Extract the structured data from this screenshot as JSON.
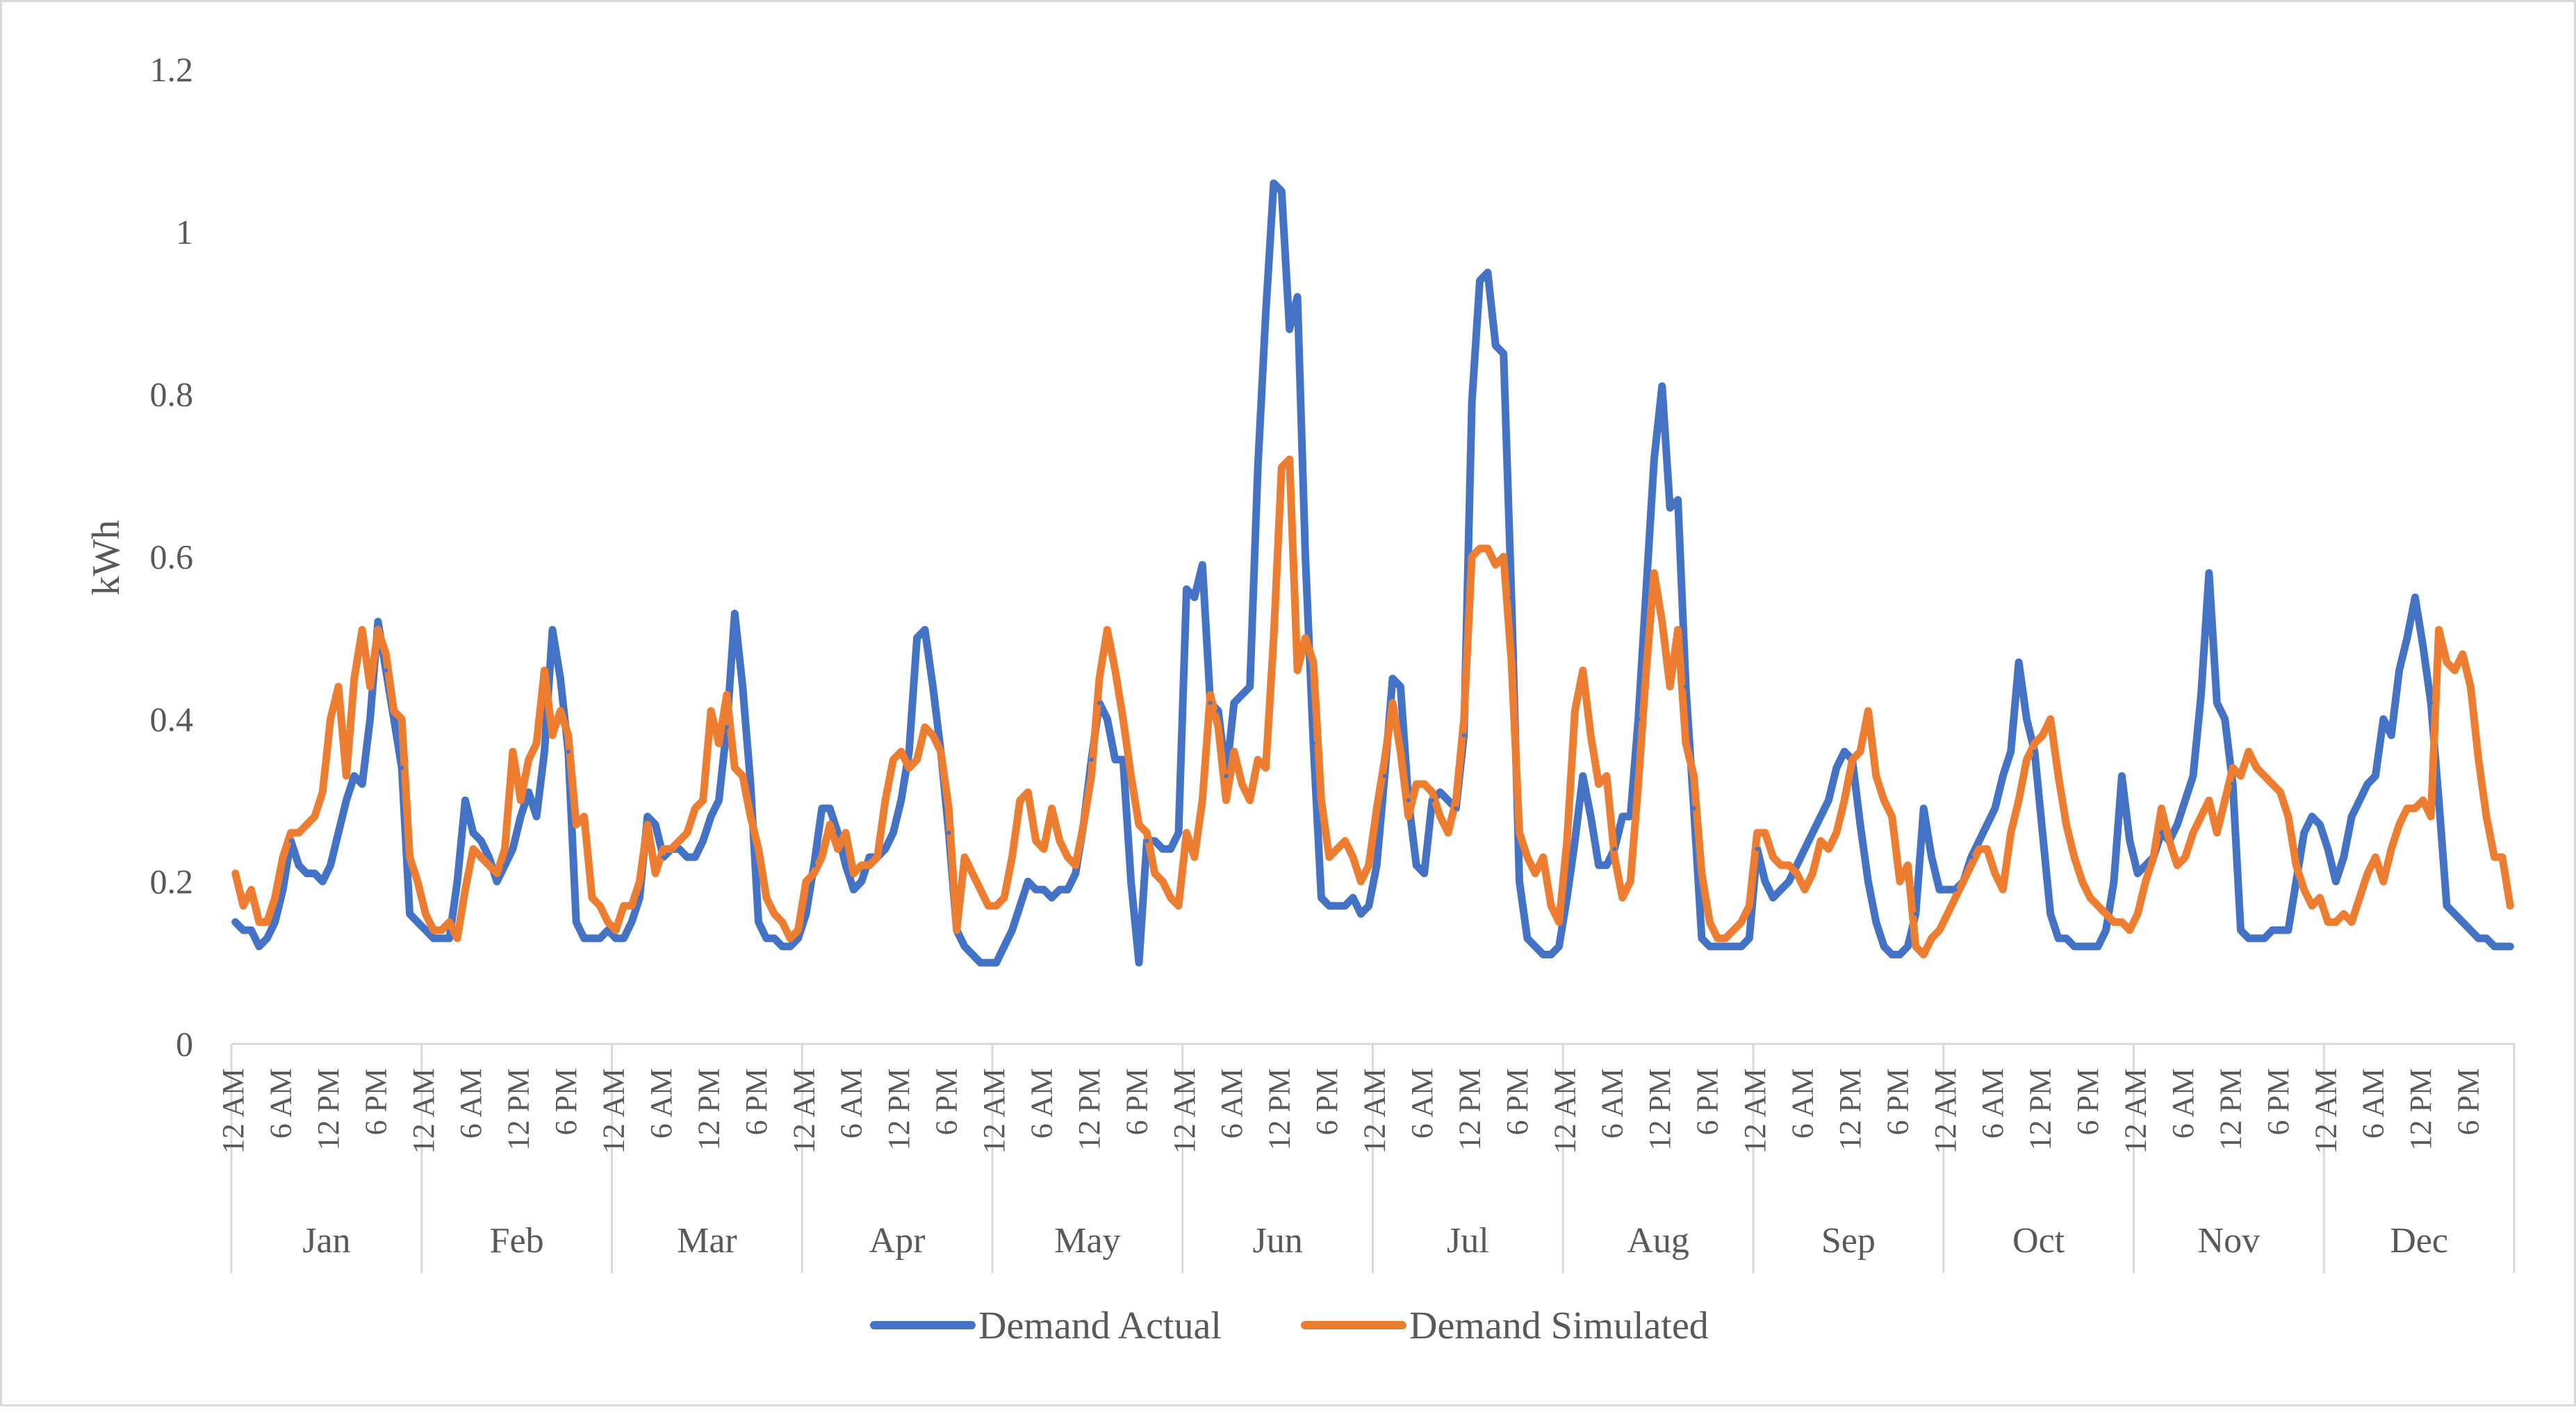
{
  "chart_data": {
    "type": "line",
    "title": "",
    "xlabel": "",
    "ylabel": "kWh",
    "ylim": [
      0,
      1.2
    ],
    "yticks": [
      "0",
      "0.2",
      "0.4",
      "0.6",
      "0.8",
      "1",
      "1.2"
    ],
    "hour_ticks": [
      "12 AM",
      "6 AM",
      "12 PM",
      "6 PM"
    ],
    "months": [
      "Jan",
      "Feb",
      "Mar",
      "Apr",
      "May",
      "Jun",
      "Jul",
      "Aug",
      "Sep",
      "Oct",
      "Nov",
      "Dec"
    ],
    "hours_per_month": 24,
    "legend_position": "bottom",
    "series": [
      {
        "name": "Demand Actual",
        "color": "#4472c4",
        "values": [
          [
            0.15,
            0.14,
            0.14,
            0.12,
            0.13,
            0.15,
            0.19,
            0.25,
            0.22,
            0.21,
            0.21,
            0.2,
            0.22,
            0.26,
            0.3,
            0.33,
            0.32,
            0.4,
            0.52,
            0.46,
            0.4,
            0.34,
            0.16,
            0.15
          ],
          [
            0.14,
            0.13,
            0.13,
            0.13,
            0.2,
            0.3,
            0.26,
            0.25,
            0.23,
            0.2,
            0.22,
            0.24,
            0.28,
            0.31,
            0.28,
            0.36,
            0.51,
            0.45,
            0.36,
            0.15,
            0.13,
            0.13,
            0.13,
            0.14
          ],
          [
            0.13,
            0.13,
            0.15,
            0.18,
            0.28,
            0.27,
            0.23,
            0.24,
            0.24,
            0.23,
            0.23,
            0.25,
            0.28,
            0.3,
            0.39,
            0.53,
            0.44,
            0.32,
            0.15,
            0.13,
            0.13,
            0.12,
            0.12,
            0.13
          ],
          [
            0.16,
            0.22,
            0.29,
            0.29,
            0.26,
            0.22,
            0.19,
            0.2,
            0.23,
            0.23,
            0.24,
            0.26,
            0.3,
            0.36,
            0.5,
            0.51,
            0.44,
            0.36,
            0.26,
            0.14,
            0.12,
            0.11,
            0.1,
            0.1
          ],
          [
            0.1,
            0.12,
            0.14,
            0.17,
            0.2,
            0.19,
            0.19,
            0.18,
            0.19,
            0.19,
            0.21,
            0.27,
            0.35,
            0.42,
            0.4,
            0.35,
            0.35,
            0.2,
            0.1,
            0.25,
            0.25,
            0.24,
            0.24,
            0.26
          ],
          [
            0.56,
            0.55,
            0.59,
            0.42,
            0.41,
            0.33,
            0.42,
            0.43,
            0.44,
            0.71,
            0.9,
            1.06,
            1.05,
            0.88,
            0.92,
            0.6,
            0.37,
            0.18,
            0.17,
            0.17,
            0.17,
            0.18,
            0.16,
            0.17
          ],
          [
            0.22,
            0.33,
            0.45,
            0.44,
            0.3,
            0.22,
            0.21,
            0.3,
            0.31,
            0.3,
            0.29,
            0.38,
            0.79,
            0.94,
            0.95,
            0.86,
            0.85,
            0.55,
            0.2,
            0.13,
            0.12,
            0.11,
            0.11,
            0.12
          ],
          [
            0.18,
            0.25,
            0.33,
            0.28,
            0.22,
            0.22,
            0.24,
            0.28,
            0.28,
            0.4,
            0.56,
            0.72,
            0.81,
            0.66,
            0.67,
            0.44,
            0.29,
            0.13,
            0.12,
            0.12,
            0.12,
            0.12,
            0.12,
            0.13
          ],
          [
            0.24,
            0.2,
            0.18,
            0.19,
            0.2,
            0.22,
            0.24,
            0.26,
            0.28,
            0.3,
            0.34,
            0.36,
            0.35,
            0.27,
            0.2,
            0.15,
            0.12,
            0.11,
            0.11,
            0.12,
            0.16,
            0.29,
            0.23,
            0.19
          ],
          [
            0.19,
            0.19,
            0.2,
            0.23,
            0.25,
            0.27,
            0.29,
            0.33,
            0.36,
            0.47,
            0.4,
            0.36,
            0.26,
            0.16,
            0.13,
            0.13,
            0.12,
            0.12,
            0.12,
            0.12,
            0.14,
            0.2,
            0.33,
            0.25
          ],
          [
            0.21,
            0.22,
            0.23,
            0.26,
            0.25,
            0.27,
            0.3,
            0.33,
            0.43,
            0.58,
            0.42,
            0.4,
            0.32,
            0.14,
            0.13,
            0.13,
            0.13,
            0.14,
            0.14,
            0.14,
            0.2,
            0.26,
            0.28,
            0.27
          ],
          [
            0.24,
            0.2,
            0.23,
            0.28,
            0.3,
            0.32,
            0.33,
            0.4,
            0.38,
            0.46,
            0.5,
            0.55,
            0.49,
            0.42,
            0.3,
            0.17,
            0.16,
            0.15,
            0.14,
            0.13,
            0.13,
            0.12,
            0.12,
            0.12
          ]
        ]
      },
      {
        "name": "Demand Simulated",
        "color": "#ed7d31",
        "values": [
          [
            0.21,
            0.17,
            0.19,
            0.15,
            0.15,
            0.18,
            0.23,
            0.26,
            0.26,
            0.27,
            0.28,
            0.31,
            0.4,
            0.44,
            0.33,
            0.45,
            0.51,
            0.44,
            0.51,
            0.48,
            0.41,
            0.4,
            0.23,
            0.2
          ],
          [
            0.16,
            0.14,
            0.14,
            0.15,
            0.13,
            0.19,
            0.24,
            0.23,
            0.22,
            0.21,
            0.24,
            0.36,
            0.3,
            0.35,
            0.37,
            0.46,
            0.38,
            0.41,
            0.38,
            0.27,
            0.28,
            0.18,
            0.17,
            0.15
          ],
          [
            0.14,
            0.17,
            0.17,
            0.2,
            0.27,
            0.21,
            0.24,
            0.24,
            0.25,
            0.26,
            0.29,
            0.3,
            0.41,
            0.37,
            0.43,
            0.34,
            0.33,
            0.28,
            0.24,
            0.18,
            0.16,
            0.15,
            0.13,
            0.14
          ],
          [
            0.2,
            0.21,
            0.23,
            0.27,
            0.24,
            0.26,
            0.21,
            0.22,
            0.22,
            0.23,
            0.3,
            0.35,
            0.36,
            0.34,
            0.35,
            0.39,
            0.38,
            0.36,
            0.29,
            0.14,
            0.23,
            0.21,
            0.19,
            0.17
          ],
          [
            0.17,
            0.18,
            0.23,
            0.3,
            0.31,
            0.25,
            0.24,
            0.29,
            0.25,
            0.23,
            0.22,
            0.27,
            0.33,
            0.45,
            0.51,
            0.46,
            0.4,
            0.33,
            0.27,
            0.26,
            0.21,
            0.2,
            0.18,
            0.17
          ],
          [
            0.26,
            0.23,
            0.3,
            0.43,
            0.39,
            0.3,
            0.36,
            0.32,
            0.3,
            0.35,
            0.34,
            0.5,
            0.71,
            0.72,
            0.46,
            0.5,
            0.47,
            0.3,
            0.23,
            0.24,
            0.25,
            0.23,
            0.2,
            0.22
          ],
          [
            0.29,
            0.35,
            0.42,
            0.36,
            0.28,
            0.32,
            0.32,
            0.31,
            0.28,
            0.26,
            0.3,
            0.4,
            0.6,
            0.61,
            0.61,
            0.59,
            0.6,
            0.47,
            0.26,
            0.23,
            0.21,
            0.23,
            0.17,
            0.15
          ],
          [
            0.25,
            0.41,
            0.46,
            0.38,
            0.32,
            0.33,
            0.23,
            0.18,
            0.2,
            0.32,
            0.46,
            0.58,
            0.52,
            0.44,
            0.51,
            0.37,
            0.33,
            0.21,
            0.15,
            0.13,
            0.13,
            0.14,
            0.15,
            0.17
          ],
          [
            0.26,
            0.26,
            0.23,
            0.22,
            0.22,
            0.21,
            0.19,
            0.21,
            0.25,
            0.24,
            0.26,
            0.3,
            0.35,
            0.36,
            0.41,
            0.33,
            0.3,
            0.28,
            0.2,
            0.22,
            0.12,
            0.11,
            0.13,
            0.14
          ],
          [
            0.16,
            0.18,
            0.2,
            0.22,
            0.24,
            0.24,
            0.21,
            0.19,
            0.26,
            0.3,
            0.35,
            0.37,
            0.38,
            0.4,
            0.33,
            0.27,
            0.23,
            0.2,
            0.18,
            0.17,
            0.16,
            0.15,
            0.15,
            0.14
          ],
          [
            0.16,
            0.2,
            0.23,
            0.29,
            0.25,
            0.22,
            0.23,
            0.26,
            0.28,
            0.3,
            0.26,
            0.3,
            0.34,
            0.33,
            0.36,
            0.34,
            0.33,
            0.32,
            0.31,
            0.28,
            0.22,
            0.19,
            0.17,
            0.18
          ],
          [
            0.15,
            0.15,
            0.16,
            0.15,
            0.18,
            0.21,
            0.23,
            0.2,
            0.24,
            0.27,
            0.29,
            0.29,
            0.3,
            0.28,
            0.51,
            0.47,
            0.46,
            0.48,
            0.44,
            0.35,
            0.28,
            0.23,
            0.23,
            0.17
          ]
        ]
      }
    ]
  }
}
